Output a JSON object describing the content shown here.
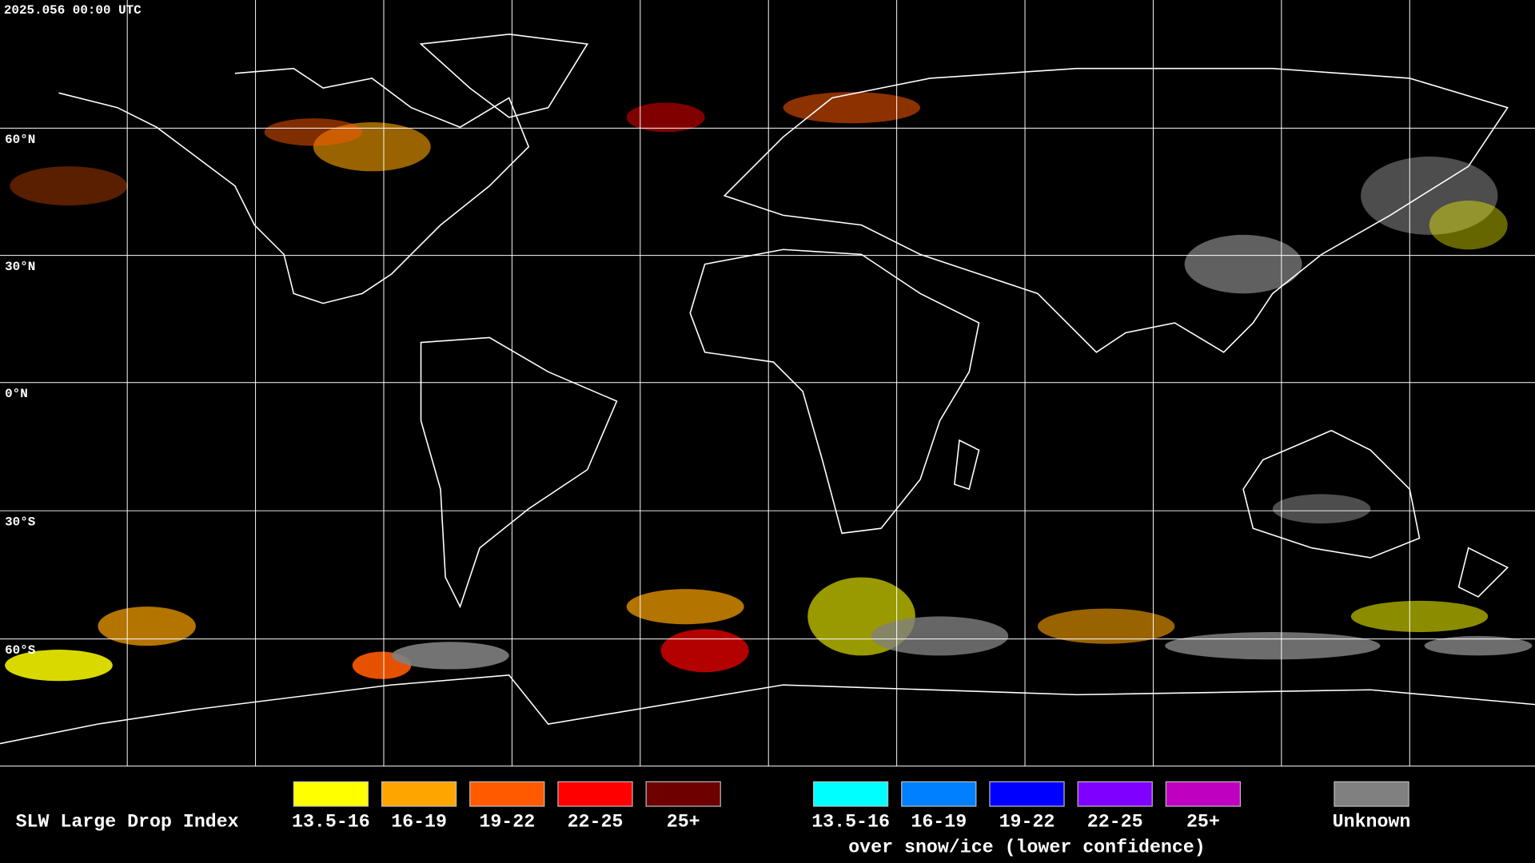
{
  "header": {
    "title": "2025.056 00:00 UTC"
  },
  "map": {
    "latitude_labels": [
      "60°N",
      "30°N",
      "0°N",
      "30°S",
      "60°S"
    ]
  },
  "legend": {
    "title": "SLW Large Drop Index",
    "groups": [
      {
        "items": [
          {
            "label": "13.5-16",
            "color": "#ffff00"
          },
          {
            "label": "16-19",
            "color": "#ffa500"
          },
          {
            "label": "19-22",
            "color": "#ff5a00"
          },
          {
            "label": "22-25",
            "color": "#ff0000"
          },
          {
            "label": "25+",
            "color": "#6e0000"
          }
        ]
      },
      {
        "items": [
          {
            "label": "13.5-16",
            "color": "#00ffff"
          },
          {
            "label": "16-19",
            "color": "#0080ff"
          },
          {
            "label": "19-22",
            "color": "#0000ff"
          },
          {
            "label": "22-25",
            "color": "#8000ff"
          },
          {
            "label": "25+",
            "color": "#c000c0"
          }
        ],
        "caption": "over snow/ice (lower confidence)"
      }
    ],
    "unknown": {
      "label": "Unknown",
      "color": "#808080"
    }
  }
}
